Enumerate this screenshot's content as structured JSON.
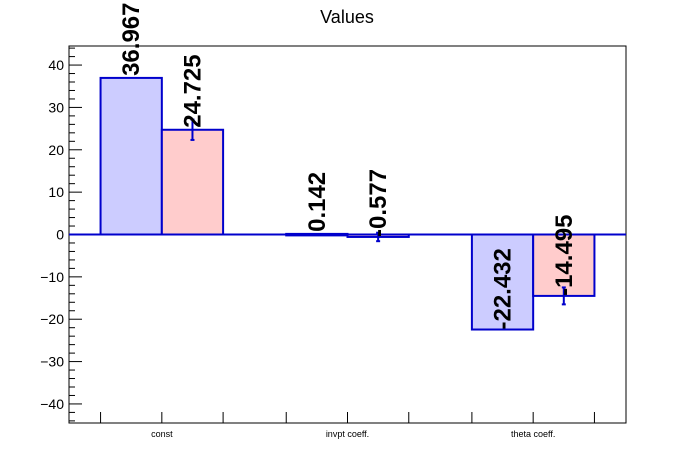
{
  "chart_data": {
    "type": "bar",
    "title": "Values",
    "categories": [
      "const",
      "invpt coeff.",
      "theta coeff."
    ],
    "ylim": [
      -44.5,
      44.5
    ],
    "yticks": [
      -40,
      -30,
      -20,
      -10,
      0,
      10,
      20,
      30,
      40
    ],
    "ytick_labels": [
      "−40",
      "−30",
      "−20",
      "−10",
      "0",
      "10",
      "20",
      "30",
      "40"
    ],
    "series": [
      {
        "fill": "#ccccff",
        "stroke": "#0000cc",
        "values": [
          36.967,
          0.142,
          -22.432
        ],
        "labels": [
          "36.967",
          "0.142",
          "-22.432"
        ],
        "errors": [
          0,
          0,
          0
        ]
      },
      {
        "fill": "#ffcccc",
        "stroke": "#0000cc",
        "values": [
          24.725,
          -0.577,
          -14.495
        ],
        "labels": [
          "24.725",
          "-0.577",
          "-14.495"
        ],
        "errors": [
          2.4,
          1.0,
          2.0
        ]
      }
    ],
    "grid": false,
    "legend": "none"
  }
}
